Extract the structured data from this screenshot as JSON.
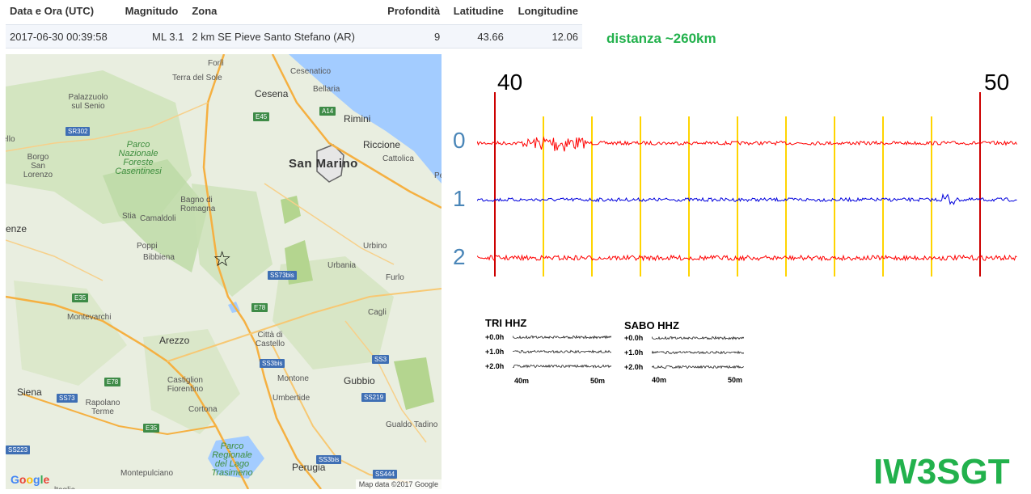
{
  "table": {
    "headers": [
      "Data e Ora (UTC)",
      "Magnitudo",
      "Zona",
      "Profondità",
      "Latitudine",
      "Longitudine"
    ],
    "row": [
      "2017-06-30 00:39:58",
      "ML 3.1",
      "2 km SE Pieve Santo Stefano (AR)",
      "9",
      "43.66",
      "12.06"
    ]
  },
  "distance": "distanza ~260km",
  "map": {
    "labels": {
      "forli": "Forlì",
      "terra_del_sole": "Terra del Sole",
      "cesenatico": "Cesenatico",
      "bellaria": "Bellaria",
      "cesena": "Cesena",
      "rimini": "Rimini",
      "riccione": "Riccione",
      "cattolica": "Cattolica",
      "palazzuolo": "Palazzuolo sul Senio",
      "san_marino": "San Marino",
      "borgo": "Borgo San Lorenzo",
      "parco1": "Parco Nazionale Foreste Casentinesi",
      "bagno": "Bagno di Romagna",
      "stia": "Stia",
      "camaldoli": "Camaldoli",
      "firenze": "enze",
      "poppi": "Poppi",
      "bibbiena": "Bibbiena",
      "urbino": "Urbino",
      "urbania": "Urbania",
      "furlo": "Furlo",
      "montevarchi": "Montevarchi",
      "cagli": "Cagli",
      "arezzo": "Arezzo",
      "citta": "Città di Castello",
      "castiglion": "Castiglion Fiorentino",
      "montone": "Montone",
      "gubbio": "Gubbio",
      "siena": "Siena",
      "rapolano": "Rapolano Terme",
      "cortona": "Cortona",
      "umbertide": "Umbertide",
      "gualdo": "Gualdo Tadino",
      "parco2": "Parco Regionale del Lago Trasimeno",
      "montepulciano": "Montepulciano",
      "perugia": "Perugia",
      "pe": "Pe",
      "ello": "ello",
      "ltaglia": "ltaglia"
    },
    "shields": {
      "sr302": "SR302",
      "e45a": "E45",
      "a14": "A14",
      "e35a": "E35",
      "ss73bis": "SS73bis",
      "e78a": "E78",
      "ss3bis": "SS3bis",
      "ss3": "SS3",
      "e78b": "E78",
      "ss73": "SS73",
      "ss219": "SS219",
      "e35b": "E35",
      "ss223": "SS223",
      "ss3bis2": "SS3bis",
      "ss444": "SS444"
    },
    "google": "Google",
    "attribution": "Map data ©2017 Google",
    "star": "☆"
  },
  "seismogram": {
    "time_labels": [
      "40",
      "50"
    ],
    "channels": [
      {
        "label": "0",
        "color": "#ff0000"
      },
      {
        "label": "1",
        "color": "#0000dd"
      },
      {
        "label": "2",
        "color": "#ff0000"
      }
    ],
    "marker_color": "#ffd400",
    "minute_marker_color": "#cc0000"
  },
  "mini_tri": {
    "title": "TRI HHZ",
    "rows": [
      "+0.0h",
      "+1.0h",
      "+2.0h"
    ],
    "axis": [
      "40m",
      "50m"
    ]
  },
  "mini_sabo": {
    "title": "SABO HHZ",
    "rows": [
      "+0.0h",
      "+1.0h",
      "+2.0h"
    ],
    "axis": [
      "40m",
      "50m"
    ]
  },
  "signature": "IW3SGT"
}
